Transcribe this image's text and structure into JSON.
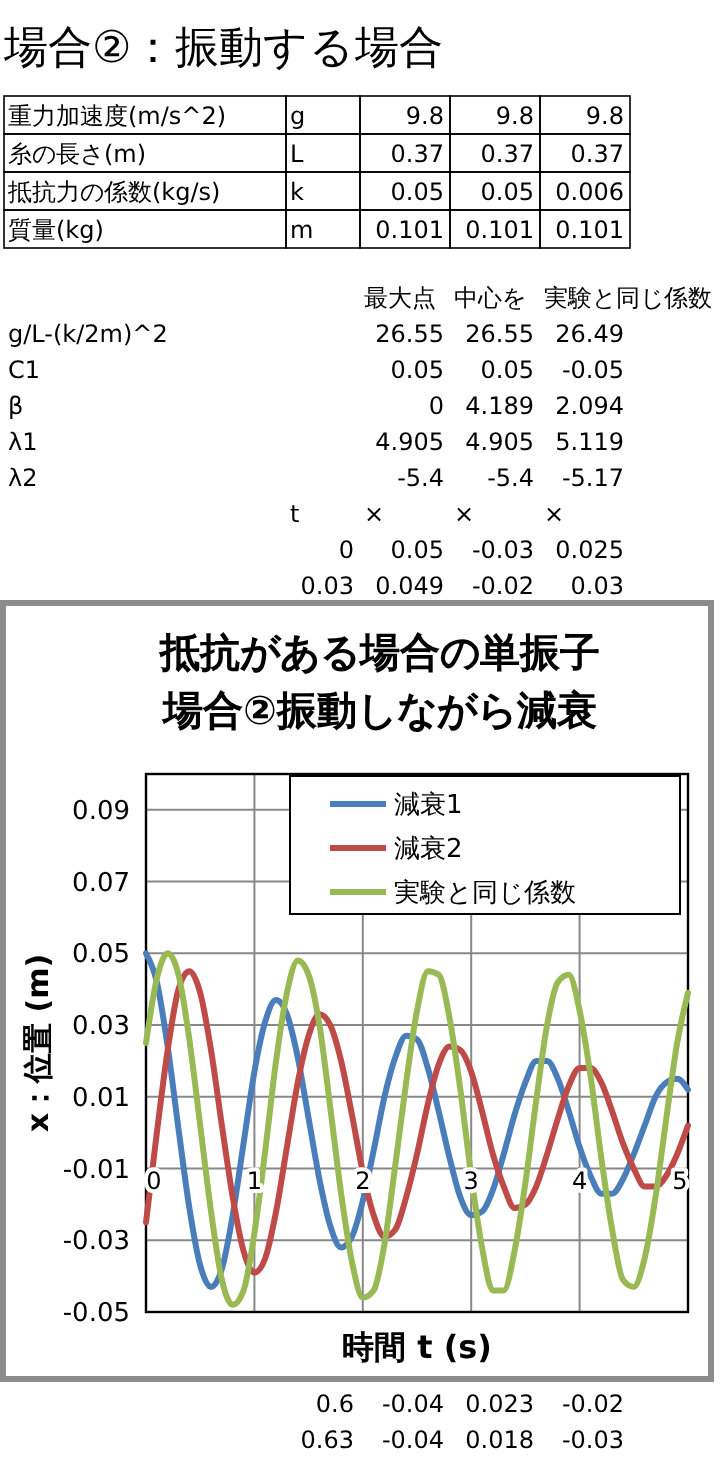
{
  "chart_data": [
    {
      "type": "other",
      "title": "場合②：振動する場合",
      "annotations": [
        "重力加速度(m/s^2)",
        "g",
        "9.8",
        "9.8",
        "9.8",
        "糸の長さ(m)",
        "L",
        "0.37",
        "0.37",
        "0.37",
        "抵抗力の係数(kg/s)",
        "k",
        "0.05",
        "0.05",
        "0.006",
        "質量(kg)",
        "m",
        "0.101",
        "0.101",
        "0.101",
        "最大点",
        "中心を",
        "実験と同じ係数",
        "g/L-(k/2m)^2",
        "26.55",
        "26.55",
        "26.49",
        "C1",
        "0.05",
        "0.05",
        "-0.05",
        "β",
        "0",
        "4.189",
        "2.094",
        "λ1",
        "4.905",
        "4.905",
        "5.119",
        "λ2",
        "-5.4",
        "-5.4",
        "-5.17",
        "t",
        "×",
        "×",
        "×",
        "0",
        "0.05",
        "-0.03",
        "0.025",
        "0.03",
        "0.049",
        "-0.02",
        "0.03",
        "0.6",
        "-0.04",
        "0.023",
        "-0.02",
        "0.63",
        "-0.04",
        "0.018",
        "-0.03"
      ]
    },
    {
      "type": "line",
      "title": "抵抗がある場合の単振子",
      "subtitle": "場合②振動しながら減衰",
      "xlabel": "時間 t (s)",
      "ylabel": "x：位置 (m)",
      "x": [
        0,
        0.1,
        0.2,
        0.3,
        0.4,
        0.5,
        0.6,
        0.7,
        0.8,
        0.9,
        1,
        1.1,
        1.2,
        1.3,
        1.4,
        1.5,
        1.6,
        1.7,
        1.8,
        1.9,
        2,
        2.1,
        2.2,
        2.3,
        2.4,
        2.5,
        2.6,
        2.7,
        2.8,
        2.9,
        3,
        3.1,
        3.2,
        3.3,
        3.4,
        3.5,
        3.6,
        3.7,
        3.8,
        3.9,
        4,
        4.1,
        4.2,
        4.3,
        4.4,
        4.5,
        4.6,
        4.7,
        4.8,
        4.9,
        5
      ],
      "series": [
        {
          "name": "減衰1",
          "color": "#4a7ebb",
          "values": [
            0.05,
            0.042,
            0.024,
            0.001,
            -0.021,
            -0.037,
            -0.043,
            -0.038,
            -0.023,
            -0.003,
            0.017,
            0.031,
            0.037,
            0.033,
            0.021,
            0.004,
            -0.013,
            -0.026,
            -0.032,
            -0.029,
            -0.019,
            -0.005,
            0.01,
            0.021,
            0.027,
            0.026,
            0.018,
            0.006,
            -0.007,
            -0.018,
            -0.023,
            -0.022,
            -0.016,
            -0.006,
            0.005,
            0.014,
            0.02,
            0.02,
            0.015,
            0.006,
            -0.004,
            -0.012,
            -0.017,
            -0.017,
            -0.013,
            -0.006,
            0.002,
            0.01,
            0.014,
            0.015,
            0.012
          ]
        },
        {
          "name": "減衰2",
          "color": "#be4b48",
          "values": [
            -0.025,
            0,
            0.023,
            0.04,
            0.045,
            0.039,
            0.023,
            0.002,
            -0.018,
            -0.033,
            -0.039,
            -0.035,
            -0.022,
            -0.004,
            0.014,
            0.027,
            0.033,
            0.03,
            0.02,
            0.005,
            -0.011,
            -0.023,
            -0.029,
            -0.027,
            -0.018,
            -0.006,
            0.008,
            0.019,
            0.024,
            0.023,
            0.017,
            0.006,
            -0.006,
            -0.015,
            -0.021,
            -0.02,
            -0.015,
            -0.006,
            0.004,
            0.013,
            0.018,
            0.018,
            0.014,
            0.006,
            -0.003,
            -0.01,
            -0.015,
            -0.015,
            -0.012,
            -0.006,
            0.002
          ]
        },
        {
          "name": "実験と同じ係数",
          "color": "#98b954",
          "values": [
            0.025,
            0.043,
            0.05,
            0.044,
            0.026,
            0.002,
            -0.022,
            -0.041,
            -0.048,
            -0.044,
            -0.028,
            -0.005,
            0.02,
            0.039,
            0.048,
            0.044,
            0.03,
            0.007,
            -0.017,
            -0.036,
            -0.046,
            -0.044,
            -0.031,
            -0.009,
            0.014,
            0.034,
            0.045,
            0.044,
            0.032,
            0.012,
            -0.012,
            -0.032,
            -0.044,
            -0.044,
            -0.033,
            -0.014,
            0.009,
            0.03,
            0.042,
            0.044,
            0.034,
            0.016,
            -0.007,
            -0.027,
            -0.041,
            -0.043,
            -0.035,
            -0.018,
            0.004,
            0.025,
            0.039
          ]
        }
      ],
      "xlim": [
        0,
        5
      ],
      "xticks": [
        0,
        1,
        2,
        3,
        4,
        5
      ],
      "ylim": [
        -0.05,
        0.1
      ],
      "yticks": [
        -0.05,
        -0.03,
        -0.01,
        0.01,
        0.03,
        0.05,
        0.07,
        0.09
      ],
      "grid": true,
      "legend": "top right"
    }
  ]
}
